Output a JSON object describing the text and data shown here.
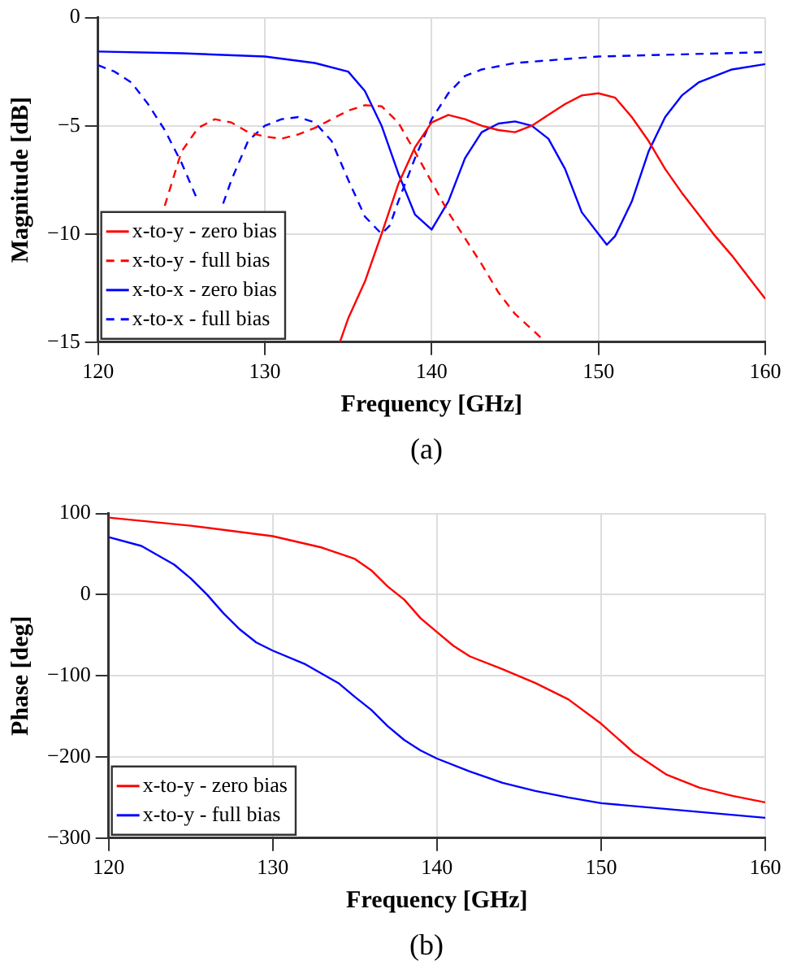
{
  "chart_data": [
    {
      "type": "line",
      "xlabel": "Frequency [GHz]",
      "ylabel": "Magnitude [dB]",
      "annotations": [
        "(a)"
      ],
      "xlim": [
        120,
        160
      ],
      "xticks": [
        120,
        130,
        140,
        150,
        160
      ],
      "ylim": [
        -15,
        0
      ],
      "yticks": [
        -15,
        -10,
        -5,
        0
      ],
      "grid": true,
      "legend": "bottom left",
      "marker": "none",
      "series": [
        {
          "name": "x-to-y - zero bias",
          "color": "#ff0000",
          "line_style": "solid",
          "x": [
            134.5,
            135,
            136,
            137,
            138,
            139,
            140,
            141,
            142,
            143,
            144,
            145,
            146,
            147,
            148,
            149,
            150,
            151,
            152,
            153,
            154,
            155,
            156,
            157,
            158,
            159,
            160
          ],
          "values": [
            -15,
            -13.9,
            -12.2,
            -10,
            -7.7,
            -6,
            -4.85,
            -4.5,
            -4.7,
            -5,
            -5.2,
            -5.3,
            -5,
            -4.5,
            -4,
            -3.6,
            -3.5,
            -3.7,
            -4.6,
            -5.7,
            -7,
            -8.1,
            -9.1,
            -10.1,
            -11,
            -12,
            -13
          ]
        },
        {
          "name": "x-to-y - full bias",
          "color": "#ff0000",
          "line_style": "dashed",
          "x": [
            124,
            125,
            126,
            127,
            128,
            129,
            130,
            131,
            132,
            133,
            134,
            135,
            136,
            137,
            138,
            139,
            140,
            141,
            142,
            143,
            144,
            145,
            146,
            146.7
          ],
          "values": [
            -8.7,
            -6.2,
            -5.1,
            -4.7,
            -4.85,
            -5.3,
            -5.5,
            -5.6,
            -5.4,
            -5.1,
            -4.7,
            -4.3,
            -4.05,
            -4.1,
            -4.85,
            -6.2,
            -7.6,
            -9,
            -10.2,
            -11.4,
            -12.7,
            -13.7,
            -14.4,
            -14.9
          ]
        },
        {
          "name": "x-to-x - zero bias",
          "color": "#0000ff",
          "line_style": "solid",
          "x": [
            120,
            125,
            130,
            133,
            135,
            136,
            137,
            138,
            139,
            140,
            141,
            142,
            143,
            144,
            145,
            146,
            147,
            148,
            149,
            150.5,
            151,
            152,
            153,
            154,
            155,
            156,
            158,
            160
          ],
          "values": [
            -1.57,
            -1.65,
            -1.8,
            -2.1,
            -2.5,
            -3.4,
            -5,
            -7.2,
            -9.1,
            -9.8,
            -8.5,
            -6.5,
            -5.3,
            -4.9,
            -4.8,
            -5,
            -5.6,
            -7,
            -9,
            -10.5,
            -10.1,
            -8.5,
            -6.2,
            -4.6,
            -3.6,
            -3,
            -2.4,
            -2.15
          ]
        },
        {
          "name": "x-to-x - full bias",
          "color": "#0000ff",
          "line_style": "dashed",
          "x": [
            120,
            121,
            122,
            123,
            124,
            125,
            126,
            126.7,
            127.5,
            128,
            129,
            130,
            131,
            132,
            133,
            134,
            135,
            136,
            137,
            137.5,
            138,
            139,
            140,
            141,
            142,
            143,
            145,
            150,
            155,
            160
          ],
          "values": [
            -2.2,
            -2.5,
            -3,
            -4,
            -5.2,
            -6.7,
            -8.5,
            null,
            -8.6,
            -7.5,
            -5.7,
            -5,
            -4.7,
            -4.6,
            -4.85,
            -5.7,
            -7.5,
            -9.2,
            -10,
            -9.6,
            -8.5,
            -6.5,
            -4.7,
            -3.5,
            -2.7,
            -2.4,
            -2.1,
            -1.8,
            -1.7,
            -1.6
          ]
        }
      ]
    },
    {
      "type": "line",
      "xlabel": "Frequency [GHz]",
      "ylabel": "Phase [deg]",
      "annotations": [
        "(b)"
      ],
      "xlim": [
        120,
        160
      ],
      "xticks": [
        120,
        130,
        140,
        150,
        160
      ],
      "ylim": [
        -300,
        100
      ],
      "yticks": [
        -300,
        -200,
        -100,
        0,
        100
      ],
      "grid": true,
      "legend": "bottom left",
      "marker": "none",
      "series": [
        {
          "name": "x-to-y - zero bias",
          "color": "#ff0000",
          "line_style": "solid",
          "x": [
            120,
            125,
            130,
            133,
            135,
            136,
            137,
            138,
            139,
            140,
            141,
            142,
            144,
            146,
            148,
            150,
            152,
            154,
            156,
            158,
            160
          ],
          "values": [
            95,
            85,
            72,
            58,
            44,
            30,
            10,
            -6,
            -29,
            -46,
            -63,
            -76,
            -92,
            -109,
            -129,
            -159,
            -195,
            -222,
            -238,
            -248,
            -256
          ]
        },
        {
          "name": "x-to-y - full bias",
          "color": "#0000ff",
          "line_style": "solid",
          "x": [
            120,
            122,
            124,
            125,
            126,
            127,
            128,
            129,
            130,
            132,
            134,
            135,
            136,
            137,
            138,
            139,
            140,
            142,
            144,
            146,
            148,
            150,
            155,
            160
          ],
          "values": [
            71,
            60,
            37,
            20,
            0,
            -23,
            -43,
            -59,
            -69,
            -86,
            -109,
            -126,
            -142,
            -162,
            -179,
            -192,
            -202,
            -218,
            -232,
            -242,
            -250,
            -257,
            -266,
            -275
          ]
        }
      ]
    }
  ]
}
